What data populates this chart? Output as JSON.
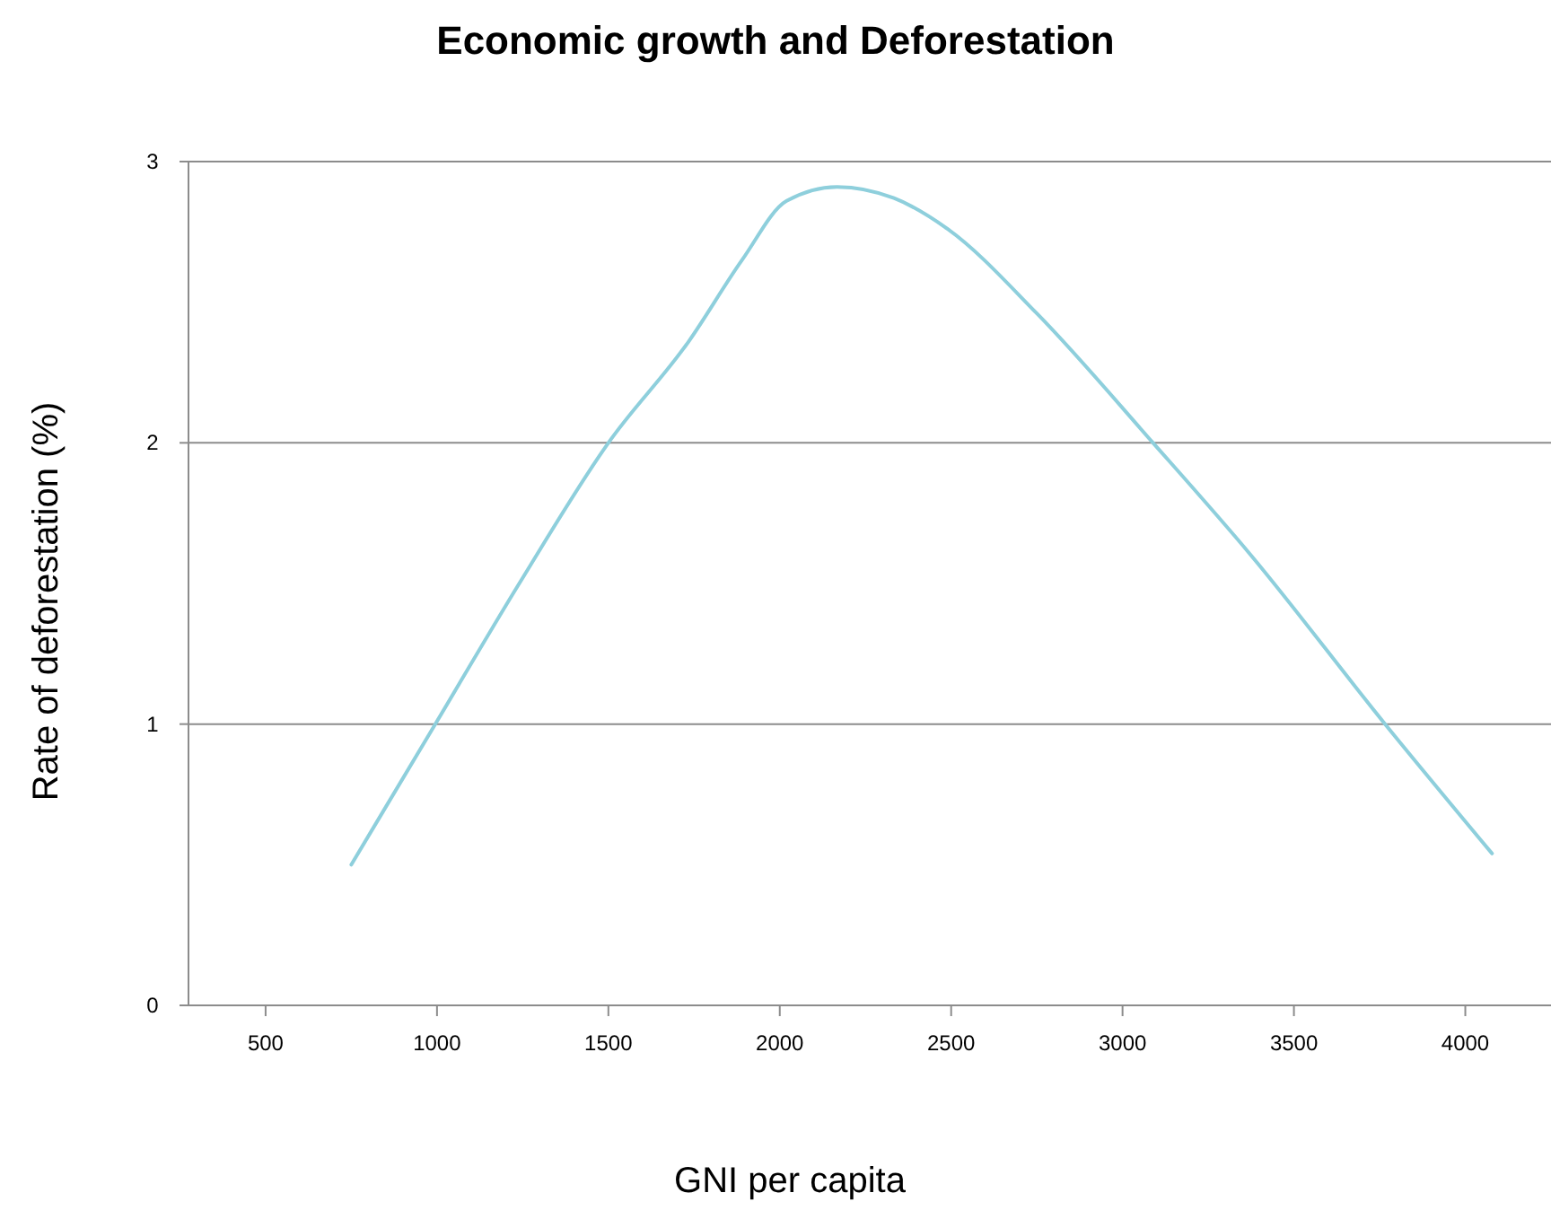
{
  "chart_data": {
    "type": "line",
    "title": "Economic growth and Deforestation",
    "xlabel": "GNI per capita",
    "ylabel": "Rate of deforestation (%)",
    "x": [
      750,
      995,
      1240,
      1500,
      1734,
      1890,
      2020,
      2167,
      2333,
      2490,
      2750,
      3089,
      3375,
      3766,
      4078
    ],
    "series": [
      {
        "color": "#8ecfdc",
        "values": [
          0.5,
          1.0,
          1.5,
          2.0,
          2.36,
          2.65,
          2.86,
          2.91,
          2.87,
          2.76,
          2.46,
          2.0,
          1.6,
          1.0,
          0.54
        ]
      }
    ],
    "xlim": [
      275,
      4250
    ],
    "xticks": [
      500,
      1000,
      1500,
      2000,
      2500,
      3000,
      3500,
      4000
    ],
    "ylim": [
      0,
      3
    ],
    "yticks": [
      0,
      1,
      2,
      3
    ],
    "grid": "y",
    "marker": "none",
    "line_style": "solid"
  }
}
